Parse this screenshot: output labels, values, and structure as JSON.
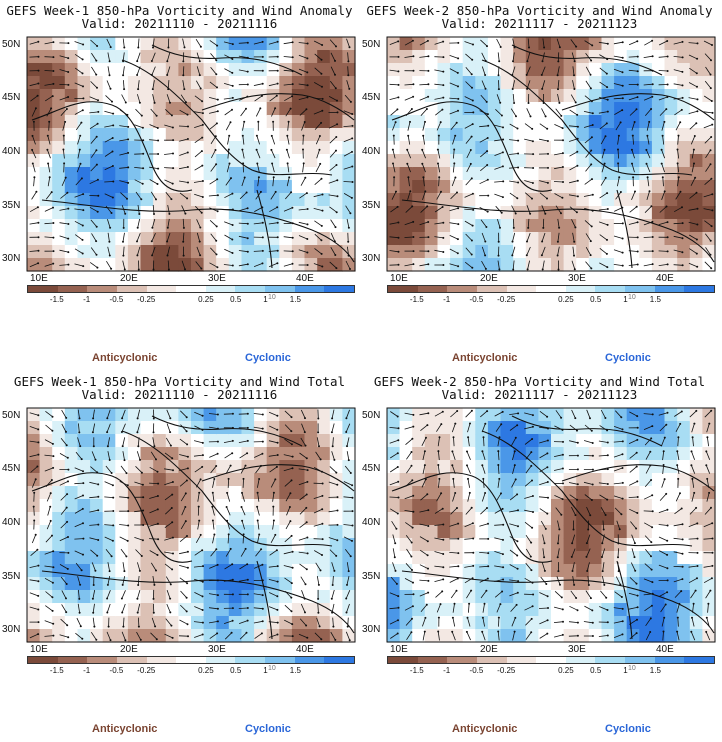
{
  "panels": [
    {
      "title1": "GEFS Week-1 850-hPa Vorticity and Wind Anomaly",
      "title2": "Valid: 20211110 - 20211116",
      "seed": 11
    },
    {
      "title1": "GEFS Week-2 850-hPa Vorticity and Wind Anomaly",
      "title2": "Valid: 20211117 - 20211123",
      "seed": 23
    },
    {
      "title1": "GEFS Week-1 850-hPa Vorticity and Wind Total",
      "title2": "Valid: 20211110 - 20211116",
      "seed": 37
    },
    {
      "title1": "GEFS Week-2 850-hPa Vorticity and Wind Total",
      "title2": "Valid: 20211117 - 20211123",
      "seed": 53
    }
  ],
  "lat_labels": [
    "50N",
    "45N",
    "40N",
    "35N",
    "30N"
  ],
  "lon_labels": [
    "10E",
    "20E",
    "30E",
    "40E"
  ],
  "colorbar": {
    "ticks": [
      "-1.5",
      "-1",
      "-0.5",
      "-0.25",
      "0.25",
      "0.5",
      "1",
      "1.5"
    ],
    "mark": "10",
    "colors": [
      "#7b4a3a",
      "#956251",
      "#b98c7a",
      "#dcc1b5",
      "#f3e8e3",
      "#ffffff",
      "#d9f1f8",
      "#a8ddf3",
      "#7fc2ef",
      "#4a97e8",
      "#2d78e2"
    ]
  },
  "legend": {
    "anticyclonic": "Anticyclonic",
    "cyclonic": "Cyclonic"
  }
}
